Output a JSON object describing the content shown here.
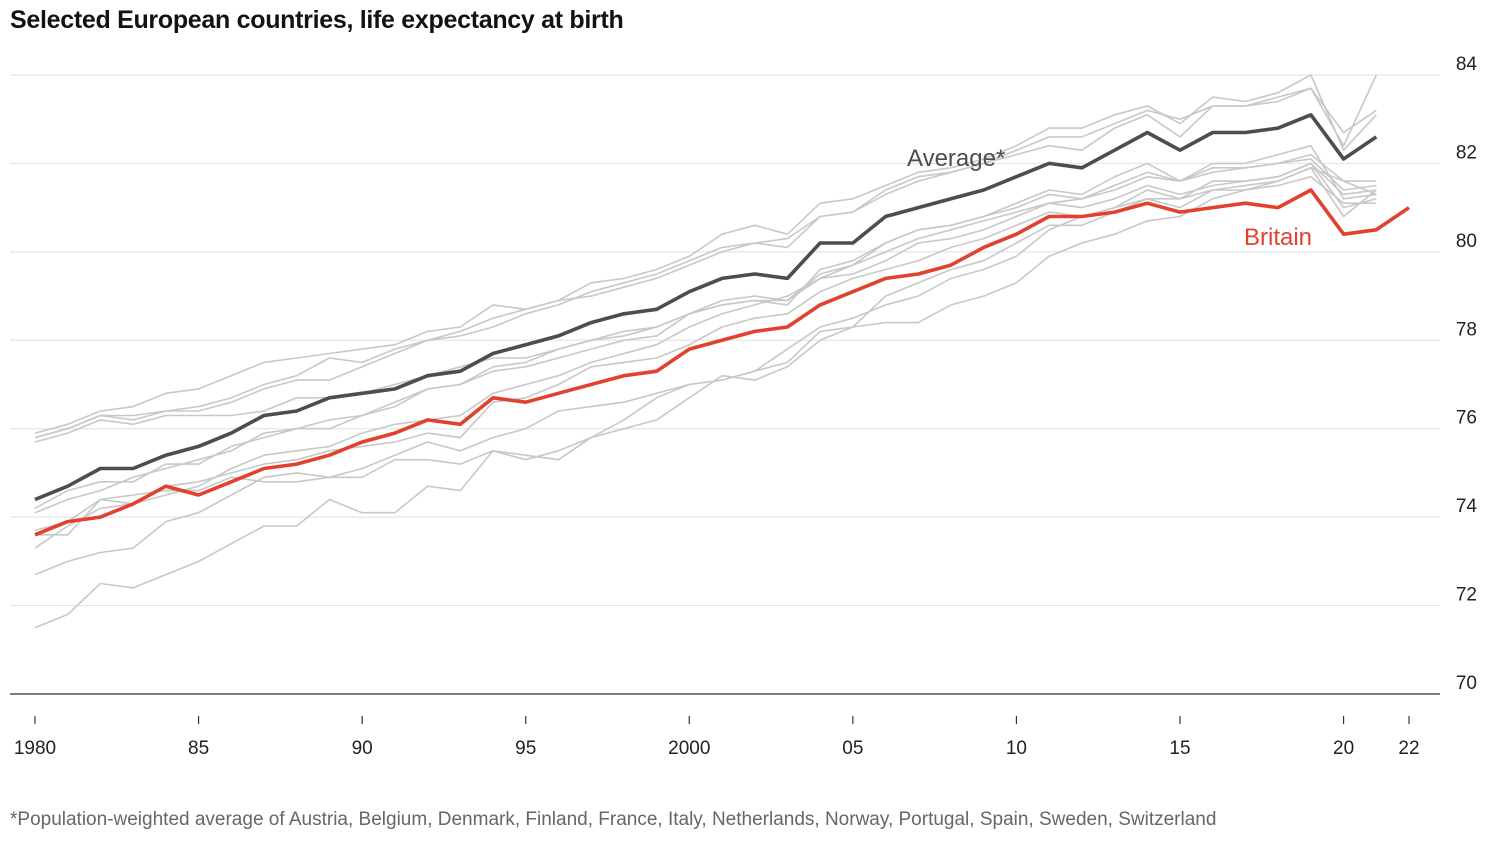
{
  "title": "Selected European countries, life expectancy at birth",
  "footnote": "*Population-weighted average of Austria, Belgium, Denmark, Finland, France, Italy, Netherlands, Norway, Portugal, Spain, Sweden, Switzerland",
  "colors": {
    "britain": "#e3412f",
    "average": "#4d4d4d",
    "country": "#c8c8c8",
    "grid": "#e6e6e6",
    "axis": "#333333"
  },
  "chart_data": {
    "type": "line",
    "title": "Selected European countries, life expectancy at birth",
    "xlabel": "",
    "ylabel": "",
    "xlim": [
      1980,
      2022
    ],
    "ylim": [
      70,
      84
    ],
    "y_axis_position": "right",
    "grid": true,
    "x_ticks": [
      {
        "value": 1980,
        "label": "1980"
      },
      {
        "value": 1985,
        "label": "85"
      },
      {
        "value": 1990,
        "label": "90"
      },
      {
        "value": 1995,
        "label": "95"
      },
      {
        "value": 2000,
        "label": "2000"
      },
      {
        "value": 2005,
        "label": "05"
      },
      {
        "value": 2010,
        "label": "10"
      },
      {
        "value": 2015,
        "label": "15"
      },
      {
        "value": 2020,
        "label": "20"
      },
      {
        "value": 2022,
        "label": "22"
      }
    ],
    "y_ticks": [
      {
        "value": 70,
        "label": "70"
      },
      {
        "value": 72,
        "label": "72"
      },
      {
        "value": 74,
        "label": "74"
      },
      {
        "value": 76,
        "label": "76"
      },
      {
        "value": 78,
        "label": "78"
      },
      {
        "value": 80,
        "label": "80"
      },
      {
        "value": 82,
        "label": "82"
      },
      {
        "value": 84,
        "label": "84"
      }
    ],
    "series": [
      {
        "name": "Britain",
        "role": "highlight",
        "start_year": 1980,
        "values": [
          73.6,
          73.9,
          74.0,
          74.3,
          74.7,
          74.5,
          74.8,
          75.1,
          75.2,
          75.4,
          75.7,
          75.9,
          76.2,
          76.1,
          76.7,
          76.6,
          76.8,
          77.0,
          77.2,
          77.3,
          77.8,
          78.0,
          78.2,
          78.3,
          78.8,
          79.1,
          79.4,
          79.5,
          79.7,
          80.1,
          80.4,
          80.8,
          80.8,
          80.9,
          81.1,
          80.9,
          81.0,
          81.1,
          81.0,
          81.4,
          80.4,
          80.5,
          81.0
        ]
      },
      {
        "name": "Average*",
        "role": "average",
        "start_year": 1980,
        "values": [
          74.4,
          74.7,
          75.1,
          75.1,
          75.4,
          75.6,
          75.9,
          76.3,
          76.4,
          76.7,
          76.8,
          76.9,
          77.2,
          77.3,
          77.7,
          77.9,
          78.1,
          78.4,
          78.6,
          78.7,
          79.1,
          79.4,
          79.5,
          79.4,
          80.2,
          80.2,
          80.8,
          81.0,
          81.2,
          81.4,
          81.7,
          82.0,
          81.9,
          82.3,
          82.7,
          82.3,
          82.7,
          82.7,
          82.8,
          83.1,
          82.1,
          82.6
        ]
      },
      {
        "role": "country",
        "start_year": 1980,
        "values": [
          75.8,
          76.0,
          76.3,
          76.2,
          76.4,
          76.5,
          76.7,
          77.0,
          77.2,
          77.6,
          77.5,
          77.8,
          78.0,
          78.2,
          78.5,
          78.7,
          78.9,
          79.0,
          79.2,
          79.4,
          79.7,
          80.0,
          80.2,
          80.3,
          80.8,
          80.9,
          81.3,
          81.6,
          81.8,
          82.0,
          82.3,
          82.6,
          82.6,
          82.9,
          83.2,
          83.0,
          83.3,
          83.3,
          83.5,
          83.7,
          82.7,
          83.2
        ]
      },
      {
        "role": "country",
        "start_year": 1980,
        "values": [
          75.9,
          76.1,
          76.4,
          76.5,
          76.8,
          76.9,
          77.2,
          77.5,
          77.6,
          77.7,
          77.8,
          77.9,
          78.2,
          78.3,
          78.8,
          78.7,
          78.9,
          79.3,
          79.4,
          79.6,
          79.9,
          80.4,
          80.6,
          80.4,
          81.1,
          81.2,
          81.5,
          81.8,
          81.9,
          82.1,
          82.4,
          82.8,
          82.8,
          83.1,
          83.3,
          82.9,
          83.5,
          83.4,
          83.6,
          84.0,
          82.3,
          83.1
        ]
      },
      {
        "role": "country",
        "start_year": 1980,
        "values": [
          75.8,
          76.0,
          76.3,
          76.3,
          76.4,
          76.4,
          76.6,
          76.9,
          77.1,
          77.1,
          77.4,
          77.7,
          78.0,
          78.1,
          78.3,
          78.6,
          78.8,
          79.1,
          79.3,
          79.5,
          79.8,
          80.1,
          80.2,
          80.1,
          80.8,
          80.9,
          81.4,
          81.7,
          81.8,
          82.0,
          82.2,
          82.4,
          82.3,
          82.8,
          83.1,
          82.6,
          83.3,
          83.3,
          83.4,
          83.7,
          82.4,
          84.0
        ]
      },
      {
        "role": "country",
        "start_year": 1980,
        "values": [
          75.7,
          75.9,
          76.2,
          76.1,
          76.3,
          76.3,
          76.3,
          76.4,
          76.7,
          76.7,
          76.8,
          77.0,
          77.2,
          77.4,
          77.6,
          77.6,
          77.8,
          78.0,
          78.2,
          78.3,
          78.6,
          78.8,
          78.9,
          78.9,
          79.4,
          79.7,
          80.2,
          80.5,
          80.6,
          80.8,
          81.0,
          81.3,
          81.2,
          81.4,
          81.7,
          81.6,
          81.9,
          81.9,
          82.0,
          82.2,
          81.6,
          81.6
        ]
      },
      {
        "role": "country",
        "start_year": 1980,
        "values": [
          74.2,
          74.6,
          74.8,
          74.8,
          75.2,
          75.2,
          75.6,
          75.8,
          76.0,
          76.2,
          76.3,
          76.6,
          76.9,
          77.0,
          77.4,
          77.5,
          77.8,
          78.0,
          78.1,
          78.3,
          78.6,
          78.8,
          78.9,
          78.8,
          79.6,
          79.8,
          80.2,
          80.5,
          80.6,
          80.8,
          81.1,
          81.4,
          81.3,
          81.7,
          82.0,
          81.6,
          82.0,
          82.0,
          82.2,
          82.4,
          81.2,
          81.3
        ]
      },
      {
        "role": "country",
        "start_year": 1980,
        "values": [
          74.1,
          74.4,
          74.6,
          74.9,
          75.1,
          75.3,
          75.5,
          75.9,
          76.0,
          76.0,
          76.3,
          76.5,
          76.9,
          77.0,
          77.3,
          77.4,
          77.6,
          77.8,
          78.0,
          78.1,
          78.6,
          78.9,
          79.0,
          78.9,
          79.5,
          79.7,
          80.0,
          80.3,
          80.5,
          80.7,
          80.9,
          81.1,
          81.2,
          81.5,
          81.8,
          81.6,
          81.8,
          81.9,
          82.0,
          82.1,
          81.4,
          81.5
        ]
      },
      {
        "role": "country",
        "start_year": 1980,
        "values": [
          73.7,
          73.9,
          74.4,
          74.3,
          74.5,
          74.7,
          75.1,
          75.4,
          75.5,
          75.6,
          75.9,
          76.1,
          76.2,
          76.3,
          76.8,
          77.0,
          77.2,
          77.5,
          77.7,
          77.9,
          78.3,
          78.6,
          78.8,
          79.0,
          79.4,
          79.5,
          79.8,
          80.2,
          80.3,
          80.5,
          80.8,
          81.1,
          81.0,
          81.2,
          81.5,
          81.3,
          81.5,
          81.6,
          81.7,
          82.0,
          81.3,
          81.4
        ]
      },
      {
        "role": "country",
        "start_year": 1980,
        "values": [
          73.3,
          73.8,
          74.2,
          74.3,
          74.7,
          74.8,
          75.0,
          75.2,
          75.3,
          75.5,
          75.6,
          75.7,
          75.9,
          75.8,
          76.6,
          76.7,
          77.0,
          77.4,
          77.5,
          77.6,
          77.9,
          78.3,
          78.5,
          78.6,
          79.1,
          79.4,
          79.6,
          79.8,
          80.1,
          80.3,
          80.6,
          80.9,
          80.8,
          81.0,
          81.4,
          81.2,
          81.6,
          81.6,
          81.7,
          82.0,
          81.0,
          81.2
        ]
      },
      {
        "role": "country",
        "start_year": 1980,
        "values": [
          73.6,
          73.6,
          74.4,
          74.5,
          74.6,
          74.6,
          74.9,
          74.8,
          74.8,
          74.9,
          75.1,
          75.4,
          75.7,
          75.5,
          75.8,
          76.0,
          76.4,
          76.5,
          76.6,
          76.8,
          77.0,
          77.1,
          77.3,
          77.8,
          78.3,
          78.5,
          78.8,
          79.0,
          79.4,
          79.6,
          79.9,
          80.5,
          80.8,
          81.0,
          81.2,
          81.2,
          81.4,
          81.4,
          81.5,
          81.7,
          81.1,
          81.1
        ]
      },
      {
        "role": "country",
        "start_year": 1980,
        "values": [
          72.7,
          73.0,
          73.2,
          73.3,
          73.9,
          74.1,
          74.5,
          74.9,
          75.0,
          74.9,
          74.9,
          75.3,
          75.3,
          75.2,
          75.5,
          75.4,
          75.3,
          75.8,
          76.0,
          76.2,
          76.7,
          77.2,
          77.1,
          77.4,
          78.0,
          78.3,
          78.4,
          78.4,
          78.8,
          79.0,
          79.3,
          79.9,
          80.2,
          80.4,
          80.7,
          80.8,
          81.2,
          81.4,
          81.6,
          81.9,
          80.8,
          81.4
        ]
      },
      {
        "role": "country",
        "start_year": 1980,
        "values": [
          71.5,
          71.8,
          72.5,
          72.4,
          72.7,
          73.0,
          73.4,
          73.8,
          73.8,
          74.4,
          74.1,
          74.1,
          74.7,
          74.6,
          75.5,
          75.3,
          75.5,
          75.8,
          76.2,
          76.7,
          77.0,
          77.1,
          77.3,
          77.5,
          78.2,
          78.3,
          79.0,
          79.3,
          79.6,
          79.8,
          80.2,
          80.6,
          80.6,
          80.9,
          81.2,
          81.0,
          81.4,
          81.5,
          81.6,
          81.9,
          81.6,
          81.3
        ]
      }
    ],
    "annotations": [
      {
        "text": "Average*",
        "series": "Average*"
      },
      {
        "text": "Britain",
        "series": "Britain"
      }
    ]
  }
}
